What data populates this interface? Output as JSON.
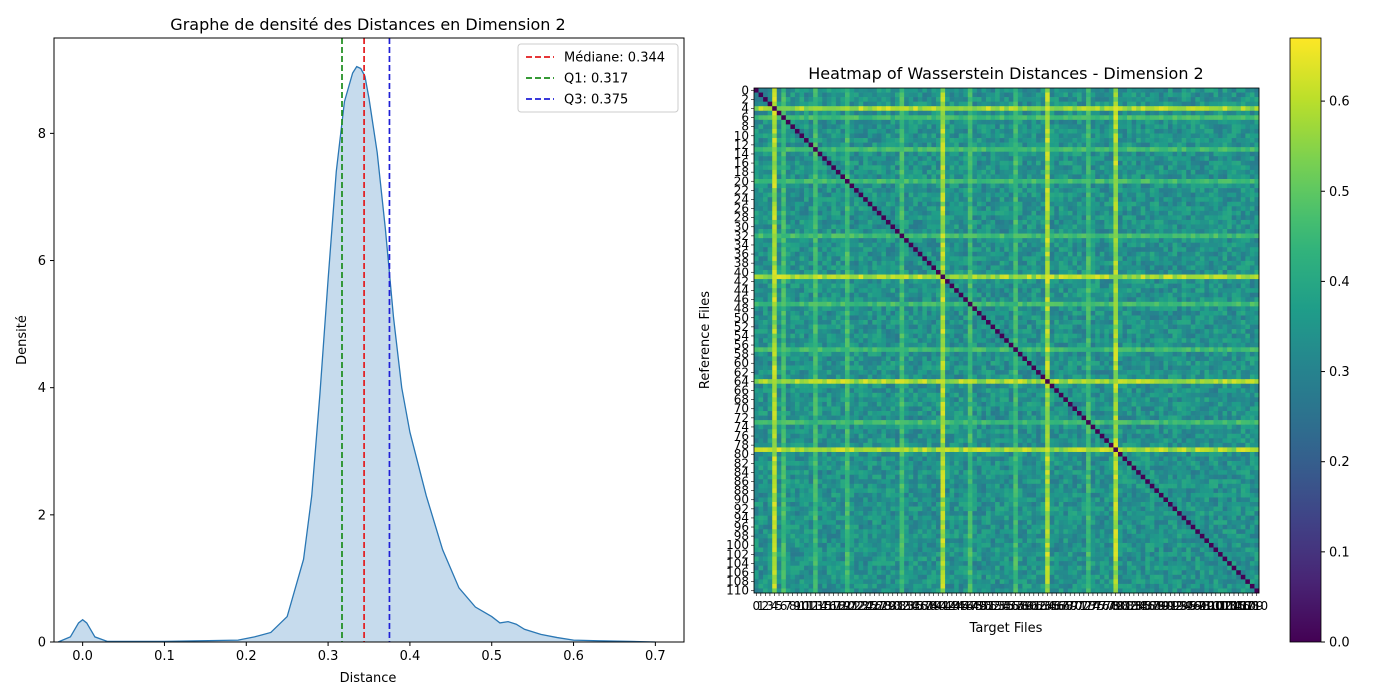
{
  "chart_data": [
    {
      "type": "area",
      "title": "Graphe de densité des Distances en Dimension 2",
      "xlabel": "Distance",
      "ylabel": "Densité",
      "xlim": [
        -0.035,
        0.735
      ],
      "ylim": [
        0,
        9.5
      ],
      "xticks": [
        0.0,
        0.1,
        0.2,
        0.3,
        0.4,
        0.5,
        0.6,
        0.7
      ],
      "yticks": [
        0,
        2,
        4,
        6,
        8
      ],
      "xtick_labels": [
        "0.0",
        "0.1",
        "0.2",
        "0.3",
        "0.4",
        "0.5",
        "0.6",
        "0.7"
      ],
      "ytick_labels": [
        "0",
        "2",
        "4",
        "6",
        "8"
      ],
      "grid": false,
      "legend_position": "top-right",
      "fill_color": "#c6dbed",
      "line_color": "#2a77b4",
      "series": [
        {
          "x": [
            -0.03,
            -0.015,
            -0.005,
            0.0,
            0.005,
            0.015,
            0.03,
            0.1,
            0.19,
            0.21,
            0.23,
            0.25,
            0.27,
            0.28,
            0.29,
            0.3,
            0.31,
            0.32,
            0.33,
            0.335,
            0.34,
            0.345,
            0.35,
            0.36,
            0.37,
            0.38,
            0.39,
            0.4,
            0.42,
            0.44,
            0.46,
            0.48,
            0.5,
            0.51,
            0.52,
            0.53,
            0.54,
            0.56,
            0.58,
            0.6,
            0.63,
            0.67,
            0.7
          ],
          "y": [
            0.0,
            0.08,
            0.3,
            0.35,
            0.3,
            0.08,
            0.01,
            0.01,
            0.03,
            0.08,
            0.15,
            0.4,
            1.3,
            2.3,
            3.9,
            5.7,
            7.4,
            8.5,
            8.95,
            9.05,
            9.02,
            8.9,
            8.55,
            7.7,
            6.5,
            5.1,
            4.0,
            3.3,
            2.3,
            1.45,
            0.85,
            0.55,
            0.4,
            0.3,
            0.32,
            0.28,
            0.2,
            0.12,
            0.07,
            0.03,
            0.02,
            0.01,
            0.0
          ]
        }
      ],
      "reference_lines": [
        {
          "label": "Médiane: 0.344",
          "x": 0.344,
          "color": "#e31a1c"
        },
        {
          "label": "Q1: 0.317",
          "x": 0.317,
          "color": "#1a8c1a"
        },
        {
          "label": "Q3: 0.375",
          "x": 0.375,
          "color": "#1f1fd6"
        }
      ]
    },
    {
      "type": "heatmap",
      "title": "Heatmap of Wasserstein Distances - Dimension 2",
      "xlabel": "Target Files",
      "ylabel": "Reference Files",
      "n": 111,
      "colormap": "viridis",
      "vmin": 0.0,
      "vmax": 0.67,
      "diagonal_value": 0.0,
      "typical_value": 0.34,
      "bright_rows_cols": [
        4,
        41,
        64,
        79
      ],
      "moderate_rows_cols": [
        6,
        13,
        47,
        73,
        20,
        32,
        57
      ],
      "xtick_labels": [
        "0",
        "1",
        "2",
        "3",
        "4",
        "5",
        "6",
        "7",
        "8",
        "9",
        "10",
        "11",
        "12",
        "13",
        "14",
        "15",
        "16",
        "17",
        "18",
        "19",
        "20",
        "21",
        "22",
        "23",
        "24",
        "25",
        "26",
        "27",
        "28",
        "29",
        "30",
        "31",
        "32",
        "33",
        "34",
        "35",
        "36",
        "37",
        "38",
        "39",
        "40",
        "41",
        "42",
        "43",
        "44",
        "45",
        "46",
        "47",
        "48",
        "49",
        "50",
        "51",
        "52",
        "53",
        "54",
        "55",
        "56",
        "57",
        "58",
        "59",
        "60",
        "61",
        "62",
        "63",
        "64",
        "65",
        "66",
        "67",
        "68",
        "69",
        "70",
        "71",
        "72",
        "73",
        "74",
        "75",
        "76",
        "77",
        "78",
        "79",
        "80",
        "81",
        "82",
        "83",
        "84",
        "85",
        "86",
        "87",
        "88",
        "89",
        "90",
        "91",
        "92",
        "93",
        "94",
        "95",
        "96",
        "97",
        "98",
        "99",
        "100",
        "101",
        "102",
        "103",
        "104",
        "105",
        "106",
        "107",
        "108",
        "109",
        "110"
      ],
      "ytick_labels": [
        "0",
        "2",
        "4",
        "6",
        "8",
        "10",
        "12",
        "14",
        "16",
        "18",
        "20",
        "22",
        "24",
        "26",
        "28",
        "30",
        "32",
        "34",
        "36",
        "38",
        "40",
        "42",
        "44",
        "46",
        "48",
        "50",
        "52",
        "54",
        "56",
        "58",
        "60",
        "62",
        "64",
        "66",
        "68",
        "70",
        "72",
        "74",
        "76",
        "78",
        "80",
        "82",
        "84",
        "86",
        "88",
        "90",
        "92",
        "94",
        "96",
        "98",
        "100",
        "102",
        "104",
        "106",
        "108",
        "110"
      ],
      "colorbar_ticks": [
        0.0,
        0.1,
        0.2,
        0.3,
        0.4,
        0.5,
        0.6
      ],
      "colorbar_tick_labels": [
        "0.0",
        "0.1",
        "0.2",
        "0.3",
        "0.4",
        "0.5",
        "0.6"
      ]
    }
  ]
}
